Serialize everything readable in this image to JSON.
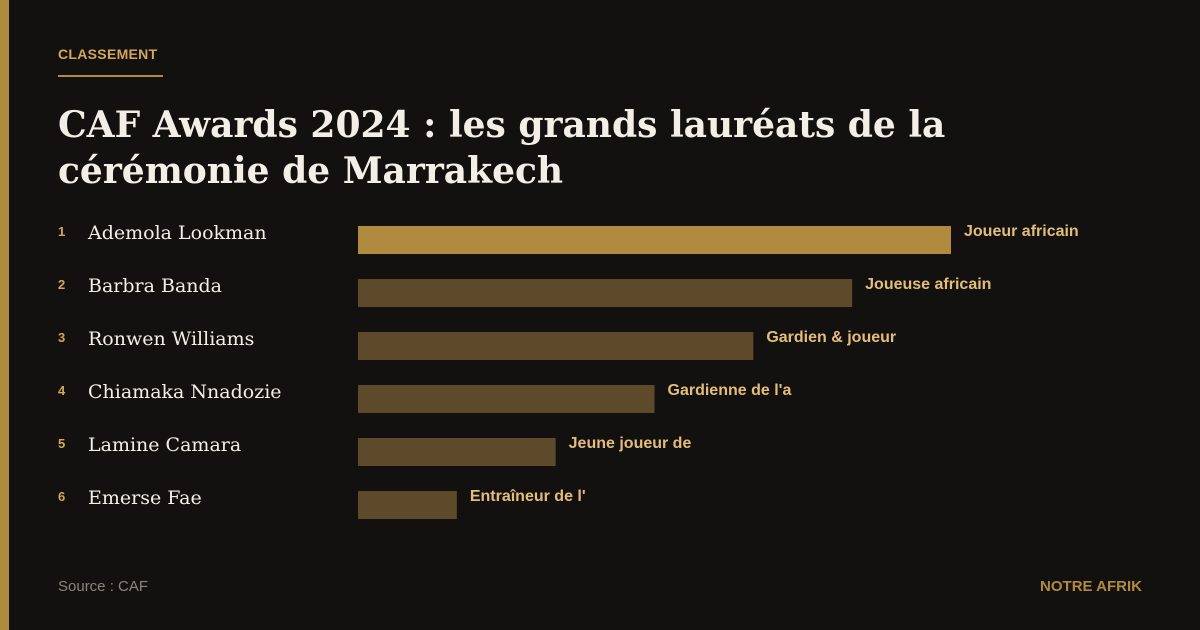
{
  "header": {
    "kicker": "CLASSEMENT",
    "title": "CAF Awards 2024 : les grands lauréats de la cérémonie de Marrakech"
  },
  "colors": {
    "accent": "#b08a3e",
    "bar_highlight": "#b08a3e",
    "bar_default": "#5c4a2b",
    "label": "#e3bd7a",
    "rank": "#d4a65a",
    "name": "#f4efe6"
  },
  "chart_data": {
    "type": "bar",
    "orientation": "horizontal",
    "ranks": [
      "1",
      "2",
      "3",
      "4",
      "5",
      "6"
    ],
    "categories": [
      "Ademola Lookman",
      "Barbra Banda",
      "Ronwen Williams",
      "Chiamaka Nnadozie",
      "Lamine Camara",
      "Emerse Fae"
    ],
    "values": [
      6,
      5,
      4,
      3,
      2,
      1
    ],
    "bar_labels": [
      "Joueur africain",
      "Joueuse africain",
      "Gardien & joueur",
      "Gardienne de l'a",
      "Jeune joueur de",
      "Entraîneur de l'"
    ],
    "highlight_index": 0,
    "title": "",
    "xlabel": "",
    "ylabel": "",
    "grid": false
  },
  "footer": {
    "source": "Source : CAF",
    "brand": "NOTRE AFRIK"
  }
}
